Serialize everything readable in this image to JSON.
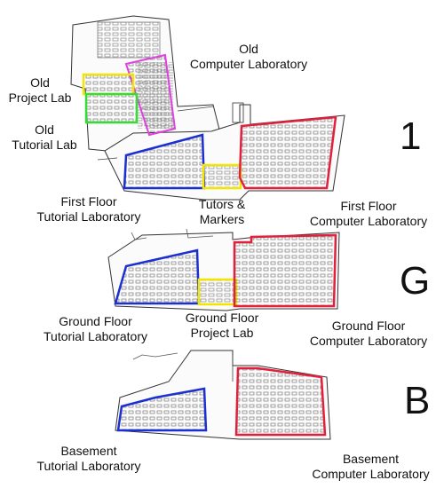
{
  "floors": {
    "first": {
      "marker": "1",
      "labels": {
        "old_computer_lab": [
          "Old",
          "Computer Laboratory"
        ],
        "old_project_lab": [
          "Old",
          "Project Lab"
        ],
        "old_tutorial_lab": [
          "Old",
          "Tutorial Lab"
        ],
        "tutorial_lab": [
          "First Floor",
          "Tutorial Laboratory"
        ],
        "tutors_markers": [
          "Tutors &",
          "Markers"
        ],
        "computer_lab": [
          "First Floor",
          "Computer Laboratory"
        ]
      }
    },
    "ground": {
      "marker": "G",
      "labels": {
        "tutorial_lab": [
          "Ground Floor",
          "Tutorial Laboratory"
        ],
        "project_lab": [
          "Ground Floor",
          "Project Lab"
        ],
        "computer_lab": [
          "Ground Floor",
          "Computer Laboratory"
        ]
      }
    },
    "basement": {
      "marker": "B",
      "labels": {
        "tutorial_lab": [
          "Basement",
          "Tutorial Laboratory"
        ],
        "computer_lab": [
          "Basement",
          "Computer Laboratory"
        ]
      }
    }
  },
  "colors": {
    "computer_lab": "#e0203c",
    "tutorial_lab": "#1c2fd0",
    "project_lab": "#f2e600",
    "old_computer_lab": "#e040e0",
    "old_tutorial_lab": "#33dd33"
  }
}
